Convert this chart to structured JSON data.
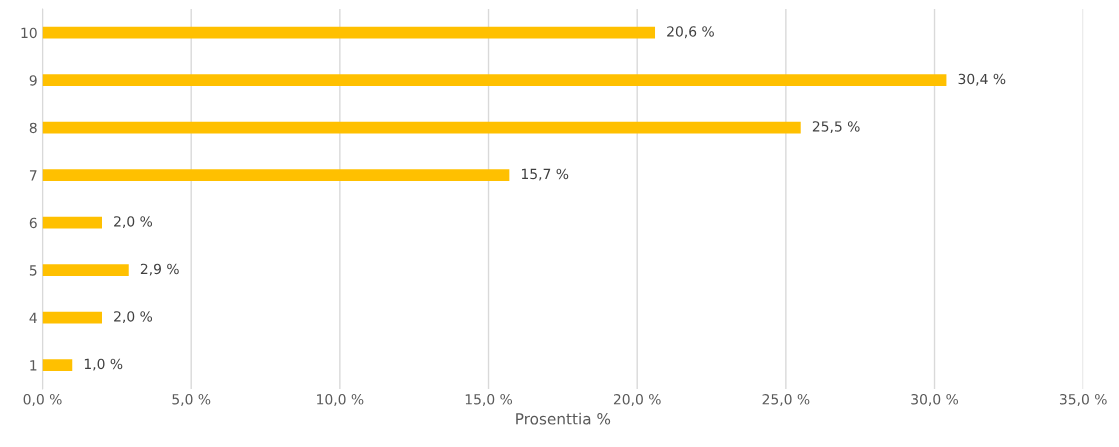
{
  "chart_data": {
    "type": "bar",
    "orientation": "horizontal",
    "xlabel": "Prosenttia %",
    "categories": [
      "10",
      "9",
      "8",
      "7",
      "6",
      "5",
      "4",
      "1"
    ],
    "values": [
      20.6,
      30.4,
      25.5,
      15.7,
      2.0,
      2.9,
      2.0,
      1.0
    ],
    "value_labels": [
      "20,6 %",
      "30,4 %",
      "25,5 %",
      "15,7 %",
      "2,0 %",
      "2,9 %",
      "2,0 %",
      "1,0 %"
    ],
    "color": "#ffc000",
    "xlim": [
      0,
      35
    ],
    "xticks": [
      {
        "value": 0,
        "label": "0,0 %"
      },
      {
        "value": 5,
        "label": "5,0 %"
      },
      {
        "value": 10,
        "label": "10,0 %"
      },
      {
        "value": 15,
        "label": "15,0 %"
      },
      {
        "value": 20,
        "label": "20,0 %"
      },
      {
        "value": 25,
        "label": "25,0 %"
      },
      {
        "value": 30,
        "label": "30,0 %"
      },
      {
        "value": 35,
        "label": "35,0 %"
      }
    ],
    "grid": "x"
  }
}
